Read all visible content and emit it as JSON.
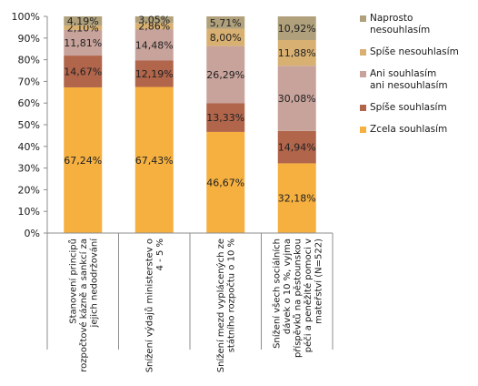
{
  "chart_data": {
    "type": "bar",
    "stacked": true,
    "percent": true,
    "categories": [
      "Stanovení principů rozpočtové kázně a sankcí za jejich nedodržování",
      "Snížení výdajů ministerstev o 4 - 5 %",
      "Snížení mezd vyplácených ze státního rozpočtu o 10 %",
      "Snížení všech sociálních dávek o 10 %, vyjma příspěvků na pěstounskou péči a peněžité pomoci v mateřství (N=522)"
    ],
    "series": [
      {
        "name": "Zcela souhlasím",
        "color": "#f5b040",
        "values": [
          67.24,
          67.43,
          46.67,
          32.18
        ],
        "labels": [
          "67,24%",
          "67,43%",
          "46,67%",
          "32,18%"
        ]
      },
      {
        "name": "Spíše souhlasím",
        "color": "#b1654b",
        "values": [
          14.67,
          12.19,
          13.33,
          14.94
        ],
        "labels": [
          "14,67%",
          "12,19%",
          "13,33%",
          "14,94%"
        ]
      },
      {
        "name": "Ani souhlasím ani nesouhlasím",
        "color": "#c8a39b",
        "values": [
          11.81,
          14.48,
          26.29,
          30.08
        ],
        "labels": [
          "11,81%",
          "14,48%",
          "26,29%",
          "30,08%"
        ]
      },
      {
        "name": "Spíše nesouhlasím",
        "color": "#d8b072",
        "values": [
          2.1,
          2.86,
          8.0,
          11.88
        ],
        "labels": [
          "2,10%",
          "2,86%",
          "8,00%",
          "11,88%"
        ]
      },
      {
        "name": "Naprosto nesouhlasím",
        "color": "#b0a17c",
        "values": [
          4.19,
          3.05,
          5.71,
          10.92
        ],
        "labels": [
          "4,19%",
          "3,05%",
          "5,71%",
          "10,92%"
        ]
      }
    ],
    "ylim": [
      0,
      100
    ],
    "yticks": [
      "0%",
      "10%",
      "20%",
      "30%",
      "40%",
      "50%",
      "60%",
      "70%",
      "80%",
      "90%",
      "100%"
    ],
    "legend_position": "right",
    "legend_order": [
      "Naprosto nesouhlasím",
      "Spíše nesouhlasím",
      "Ani souhlasím ani nesouhlasím",
      "Spíše souhlasím",
      "Zcela souhlasím"
    ],
    "category_lines": [
      [
        "Stanovení principů",
        "rozpočtové kázně a sankcí za",
        "jejich nedodržování"
      ],
      [
        "Snížení výdajů ministerstev o",
        "4 - 5 %"
      ],
      [
        "Snížení mezd vyplácených ze",
        "státního rozpočtu o 10 %"
      ],
      [
        "Snížení všech sociálních",
        "dávek o 10 %, vyjma",
        "příspěvků na pěstounskou",
        "péči a peněžité pomoci v",
        "mateřství (N=522)"
      ]
    ],
    "legend_lines": [
      [
        "Naprosto nesouhlasím"
      ],
      [
        "Spíše nesouhlasím"
      ],
      [
        "Ani souhlasím",
        "ani nesouhlasím"
      ],
      [
        "Spíše souhlasím"
      ],
      [
        "Zcela souhlasím"
      ]
    ]
  }
}
